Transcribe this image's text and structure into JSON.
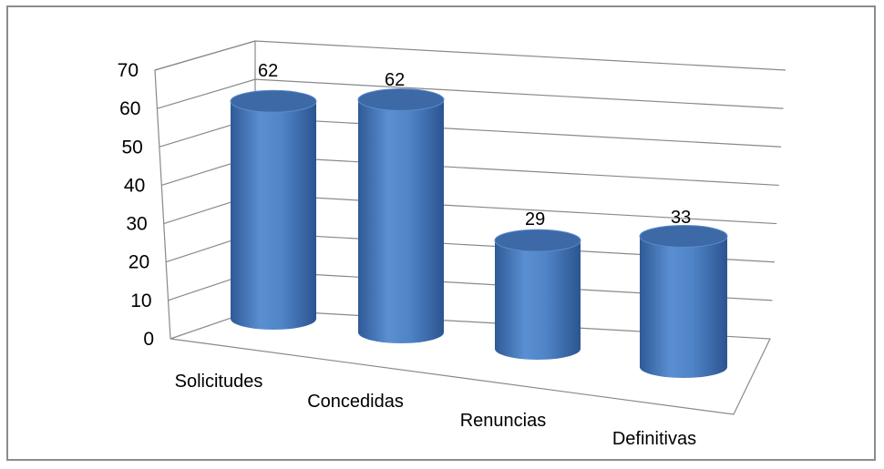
{
  "chart_data": {
    "type": "bar",
    "style": "3d-cylinder",
    "categories": [
      "Solicitudes",
      "Concedidas",
      "Renuncias",
      "Definitivas"
    ],
    "values": [
      62,
      62,
      29,
      33
    ],
    "data_labels": [
      "62",
      "62",
      "29",
      "33"
    ],
    "yticks": [
      "0",
      "10",
      "20",
      "30",
      "40",
      "50",
      "60",
      "70"
    ],
    "ylim": [
      0,
      70
    ],
    "title": "",
    "xlabel": "",
    "ylabel": "",
    "grid": true,
    "legend": "none",
    "bar_color": "#4a7ebb",
    "bar_top_color": "#3d6aa6",
    "grid_color": "#898989"
  }
}
